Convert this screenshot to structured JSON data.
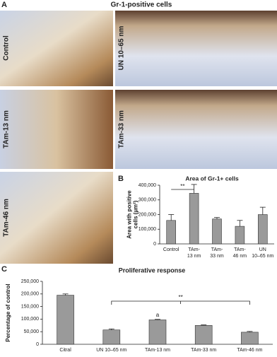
{
  "panels": {
    "a": {
      "label": "A",
      "title": "Gr-1-positive cells",
      "images": [
        "Control",
        "UN 10–65 nm",
        "TAm-13 nm",
        "TAm-33 nm",
        "TAm-46 nm"
      ]
    }
  },
  "chart_data": [
    {
      "type": "bar",
      "panel_label": "B",
      "title": "Area of Gr-1+ cells",
      "ylabel": [
        "Area with positive",
        "cells (µm²)"
      ],
      "categories": [
        [
          "Control"
        ],
        [
          "TAm-",
          "13 nm"
        ],
        [
          "TAm-",
          "33 nm"
        ],
        [
          "TAm-",
          "46 nm"
        ],
        [
          "UN",
          "10–65 nm"
        ]
      ],
      "values": [
        160000,
        345000,
        170000,
        120000,
        200000
      ],
      "errors": [
        40000,
        60000,
        10000,
        40000,
        50000
      ],
      "color": "#9a9a9a",
      "ylim": [
        0,
        400000
      ],
      "yticks": [
        0,
        {
          "value": 100000,
          "label": "100,000"
        },
        {
          "value": 200000,
          "label": "200,000"
        },
        {
          "value": 300000,
          "label": "300,000"
        },
        {
          "value": 400000,
          "label": "400,000"
        }
      ],
      "annotations": [
        "**"
      ]
    },
    {
      "type": "bar",
      "panel_label": "C",
      "title": "Proliferative response",
      "ylabel": [
        "Percentage of control"
      ],
      "categories": [
        [
          "Citral"
        ],
        [
          "UN 10–65 nm"
        ],
        [
          "TAm-13 nm"
        ],
        [
          "TAm-33 nm"
        ],
        [
          "TAm-46 nm"
        ]
      ],
      "values": [
        195000,
        57000,
        97000,
        75000,
        48000
      ],
      "errors": [
        5000,
        4000,
        2000,
        2000,
        3000
      ],
      "color": "#9a9a9a",
      "ylim": [
        0,
        250000
      ],
      "yticks": [
        0,
        {
          "value": 50000,
          "label": "50,000"
        },
        {
          "value": 100000,
          "label": "100,000"
        },
        {
          "value": 150000,
          "label": "150,000"
        },
        {
          "value": 200000,
          "label": "200,000"
        },
        {
          "value": 250000,
          "label": "250,000"
        }
      ],
      "annotations": [
        "**",
        "a"
      ]
    }
  ]
}
